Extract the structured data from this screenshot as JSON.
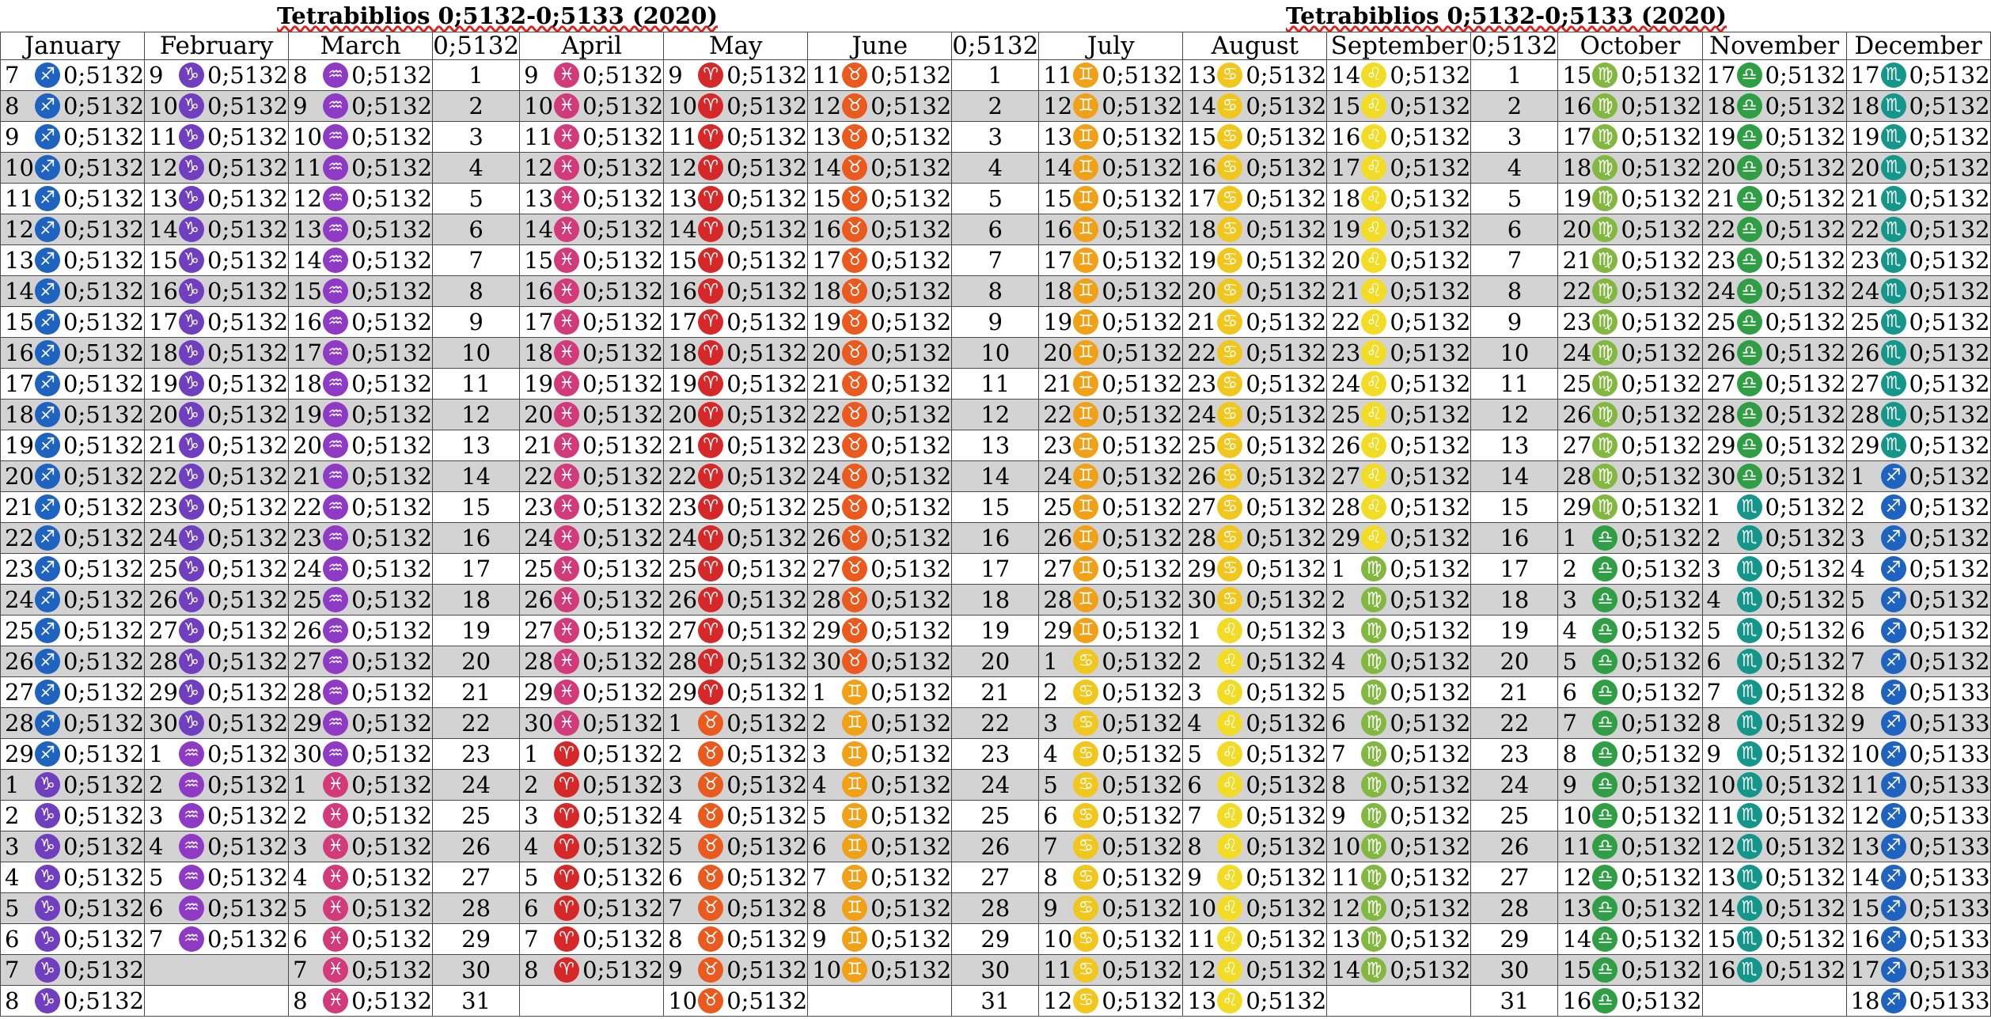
{
  "titles": [
    "Tetrabiblios 0;5132-0;5133 (2020)",
    "Tetrabiblios 0;5132-0;5133 (2020)"
  ],
  "center_header": "0;5132",
  "colors": {
    "sagittarius": "#1f63c0",
    "capricorn": "#6f3fbf",
    "aquarius": "#8f3ac4",
    "pisces": "#d23a7a",
    "aries": "#d62828",
    "taurus": "#ea5a1f",
    "gemini": "#f0a118",
    "cancer": "#f1c71d",
    "leo": "#f3dc25",
    "virgo": "#82b83f",
    "libra": "#2f9e44",
    "scorpio": "#14978a"
  },
  "signs": {
    "sagittarius": "♐",
    "capricorn": "♑",
    "aquarius": "♒",
    "pisces": "♓",
    "aries": "♈",
    "taurus": "♉",
    "gemini": "♊",
    "cancer": "♋",
    "leo": "♌",
    "virgo": "♍",
    "libra": "♎",
    "scorpio": "♏"
  },
  "center_rows": [
    "1",
    "2",
    "3",
    "4",
    "5",
    "6",
    "7",
    "8",
    "9",
    "10",
    "11",
    "12",
    "13",
    "14",
    "15",
    "16",
    "17",
    "18",
    "19",
    "20",
    "21",
    "22",
    "23",
    "24",
    "25",
    "26",
    "27",
    "28",
    "29",
    "30",
    "31"
  ],
  "months": [
    {
      "name": "January",
      "segments": [
        {
          "start": 7,
          "count": 23,
          "sign": "sagittarius"
        },
        {
          "start": 1,
          "count": 8,
          "sign": "capricorn"
        }
      ],
      "values": {
        "default": "0;5132"
      }
    },
    {
      "name": "February",
      "segments": [
        {
          "start": 9,
          "count": 22,
          "sign": "capricorn"
        },
        {
          "start": 1,
          "count": 7,
          "sign": "aquarius"
        }
      ],
      "values": {
        "default": "0;5132"
      }
    },
    {
      "name": "March",
      "segments": [
        {
          "start": 8,
          "count": 23,
          "sign": "aquarius"
        },
        {
          "start": 1,
          "count": 8,
          "sign": "pisces"
        }
      ],
      "values": {
        "default": "0;5132"
      }
    },
    {
      "name": "April",
      "segments": [
        {
          "start": 9,
          "count": 22,
          "sign": "pisces"
        },
        {
          "start": 1,
          "count": 8,
          "sign": "aries"
        }
      ],
      "values": {
        "default": "0;5132"
      }
    },
    {
      "name": "May",
      "segments": [
        {
          "start": 9,
          "count": 21,
          "sign": "aries"
        },
        {
          "start": 1,
          "count": 10,
          "sign": "taurus"
        }
      ],
      "values": {
        "default": "0;5132"
      }
    },
    {
      "name": "June",
      "segments": [
        {
          "start": 11,
          "count": 20,
          "sign": "taurus"
        },
        {
          "start": 1,
          "count": 10,
          "sign": "gemini"
        }
      ],
      "values": {
        "default": "0;5132"
      }
    },
    {
      "name": "July",
      "segments": [
        {
          "start": 11,
          "count": 19,
          "sign": "gemini"
        },
        {
          "start": 1,
          "count": 12,
          "sign": "cancer"
        }
      ],
      "values": {
        "default": "0;5132"
      }
    },
    {
      "name": "August",
      "segments": [
        {
          "start": 13,
          "count": 18,
          "sign": "cancer"
        },
        {
          "start": 1,
          "count": 13,
          "sign": "leo"
        }
      ],
      "values": {
        "default": "0;5132"
      }
    },
    {
      "name": "September",
      "segments": [
        {
          "start": 14,
          "count": 16,
          "sign": "leo"
        },
        {
          "start": 1,
          "count": 14,
          "sign": "virgo"
        }
      ],
      "values": {
        "default": "0;5132"
      }
    },
    {
      "name": "October",
      "segments": [
        {
          "start": 15,
          "count": 15,
          "sign": "virgo"
        },
        {
          "start": 1,
          "count": 16,
          "sign": "libra"
        }
      ],
      "values": {
        "default": "0;5132"
      }
    },
    {
      "name": "November",
      "segments": [
        {
          "start": 17,
          "count": 14,
          "sign": "libra"
        },
        {
          "start": 1,
          "count": 16,
          "sign": "scorpio"
        }
      ],
      "values": {
        "default": "0;5132"
      }
    },
    {
      "name": "December",
      "segments": [
        {
          "start": 17,
          "count": 13,
          "sign": "scorpio"
        },
        {
          "start": 1,
          "count": 18,
          "sign": "sagittarius"
        }
      ],
      "values": {
        "default": "0;5132",
        "late": "0;5133",
        "late_from_row": 20
      }
    }
  ]
}
